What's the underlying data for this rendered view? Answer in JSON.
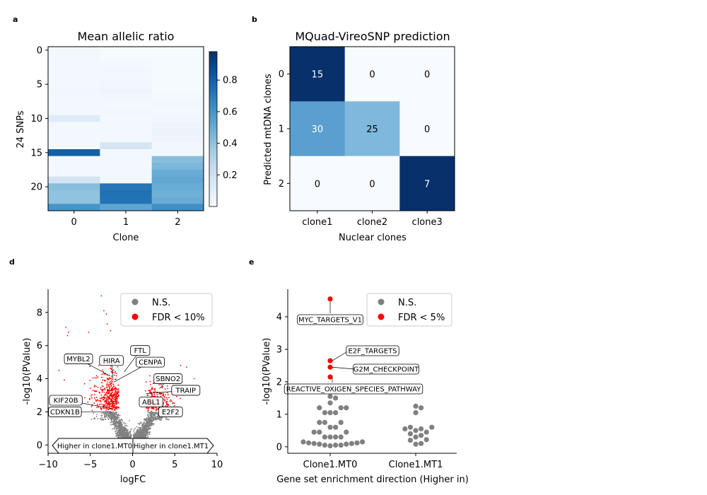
{
  "chart_data": [
    {
      "panel": "a",
      "type": "heatmap",
      "title": "Mean allelic ratio",
      "xlabel": "Clone",
      "ylabel": "24 SNPs",
      "x_categories": [
        "0",
        "1",
        "2"
      ],
      "yticks": [
        "0",
        "5",
        "10",
        "15",
        "20"
      ],
      "colorbar_ticks": [
        "0.2",
        "0.4",
        "0.6",
        "0.8"
      ],
      "colorbar_range": [
        0.0,
        0.98
      ],
      "colormap": [
        "#f7fbff",
        "#deebf7",
        "#c6dbef",
        "#9ecae1",
        "#6baed6",
        "#4292c6",
        "#2171b5",
        "#08519c",
        "#08306b"
      ],
      "values": [
        [
          0.03,
          0.01,
          0.01
        ],
        [
          0.02,
          0.01,
          0.01
        ],
        [
          0.02,
          0.02,
          0.01
        ],
        [
          0.02,
          0.03,
          0.01
        ],
        [
          0.02,
          0.02,
          0.01
        ],
        [
          0.02,
          0.03,
          0.01
        ],
        [
          0.03,
          0.05,
          0.01
        ],
        [
          0.02,
          0.03,
          0.02
        ],
        [
          0.02,
          0.02,
          0.03
        ],
        [
          0.02,
          0.03,
          0.02
        ],
        [
          0.12,
          0.02,
          0.03
        ],
        [
          0.02,
          0.02,
          0.05
        ],
        [
          0.02,
          0.02,
          0.06
        ],
        [
          0.02,
          0.02,
          0.05
        ],
        [
          0.02,
          0.17,
          0.03
        ],
        [
          0.8,
          0.02,
          0.03
        ],
        [
          0.02,
          0.02,
          0.42
        ],
        [
          0.02,
          0.02,
          0.45
        ],
        [
          0.02,
          0.02,
          0.5
        ],
        [
          0.18,
          0.03,
          0.52
        ],
        [
          0.42,
          0.72,
          0.5
        ],
        [
          0.4,
          0.74,
          0.48
        ],
        [
          0.4,
          0.73,
          0.5
        ],
        [
          0.6,
          0.53,
          0.62
        ]
      ]
    },
    {
      "panel": "b",
      "type": "heatmap",
      "title": "MQuad-VireoSNP prediction",
      "xlabel": "Nuclear clones",
      "ylabel": "Predicted mtDNA clones",
      "x_categories": [
        "clone1",
        "clone2",
        "clone3"
      ],
      "y_categories": [
        "0",
        "1",
        "2"
      ],
      "values": [
        [
          15,
          0,
          0
        ],
        [
          30,
          25,
          0
        ],
        [
          0,
          0,
          7
        ]
      ],
      "cell_colors": [
        [
          "#08306b",
          "#f7fbff",
          "#f7fbff"
        ],
        [
          "#5a9fd0",
          "#7fb8dd",
          "#f7fbff"
        ],
        [
          "#f7fbff",
          "#f7fbff",
          "#08306b"
        ]
      ]
    },
    {
      "panel": "d",
      "type": "scatter",
      "xlabel": "logFC",
      "ylabel": "-log10(PValue)",
      "xlim": [
        -10,
        10
      ],
      "ylim": [
        -0.5,
        9.4
      ],
      "xticks": [
        -10,
        -5,
        0,
        5,
        10
      ],
      "yticks": [
        0,
        2,
        4,
        6,
        8
      ],
      "legend": {
        "placement": "top-right",
        "entries": [
          {
            "label": "N.S.",
            "color": "#808080"
          },
          {
            "label": "FDR < 10%",
            "color": "#ff0000"
          }
        ]
      },
      "direction_labels": {
        "left": "Higher in clone1.MT0",
        "right": "Higher in clone1.MT1"
      },
      "gene_labels": [
        {
          "name": "FTL",
          "x": -1.0,
          "y": 4.4,
          "label_x": 0.9,
          "label_y": 5.7
        },
        {
          "name": "HIRA",
          "x": -2.3,
          "y": 3.9,
          "label_x": -2.5,
          "label_y": 5.1
        },
        {
          "name": "MYBL2",
          "x": -2.8,
          "y": 4.2,
          "label_x": -6.4,
          "label_y": 5.2
        },
        {
          "name": "CENPA",
          "x": -2.2,
          "y": 3.8,
          "label_x": 2.1,
          "label_y": 5.0
        },
        {
          "name": "SBNO2",
          "x": 3.2,
          "y": 3.4,
          "label_x": 4.2,
          "label_y": 4.0
        },
        {
          "name": "TRAIP",
          "x": 1.6,
          "y": 3.1,
          "label_x": 6.3,
          "label_y": 3.3
        },
        {
          "name": "ABL1",
          "x": 2.6,
          "y": 2.6,
          "label_x": 2.2,
          "label_y": 2.6
        },
        {
          "name": "KIF20B",
          "x": -2.4,
          "y": 2.2,
          "label_x": -7.9,
          "label_y": 2.7
        },
        {
          "name": "E2F2",
          "x": 3.0,
          "y": 2.2,
          "label_x": 4.5,
          "label_y": 2.0
        },
        {
          "name": "CDKN1B",
          "x": -2.5,
          "y": 2.0,
          "label_x": -8.0,
          "label_y": 2.0
        }
      ]
    },
    {
      "panel": "e",
      "type": "scatter",
      "xlabel": "Gene set enrichment direction (Higher in)",
      "ylabel": "-log10(PValue)",
      "categories": [
        "Clone1.MT0",
        "Clone1.MT1"
      ],
      "ylim": [
        -0.2,
        4.85
      ],
      "yticks": [
        0,
        1,
        2,
        3,
        4
      ],
      "legend": {
        "placement": "top-right",
        "entries": [
          {
            "label": "N.S.",
            "color": "#808080"
          },
          {
            "label": "FDR < 5%",
            "color": "#ff0000"
          }
        ]
      },
      "significant_points": [
        {
          "category": "Clone1.MT0",
          "y": 4.55,
          "label": "MYC_TARGETS_V1"
        },
        {
          "category": "Clone1.MT0",
          "y": 2.65,
          "label": "E2F_TARGETS"
        },
        {
          "category": "Clone1.MT0",
          "y": 2.45,
          "label": "G2M_CHECKPOINT"
        },
        {
          "category": "Clone1.MT0",
          "y": 2.15,
          "label": "REACTIVE_OXIGEN_SPECIES_PATHWAY"
        }
      ],
      "ns_points": {
        "Clone1.MT0": [
          1.7,
          1.55,
          1.5,
          1.35,
          1.2,
          1.2,
          1.2,
          1.05,
          1.05,
          1.05,
          0.75,
          0.75,
          0.75,
          0.6,
          0.6,
          0.45,
          0.45,
          0.45,
          0.3,
          0.3,
          0.3,
          0.3,
          0.15,
          0.15,
          0.12,
          0.12,
          0.1,
          0.1,
          0.08,
          0.08,
          0.05,
          0.05,
          0.05,
          0.03
        ],
        "Clone1.MT1": [
          1.25,
          1.2,
          1.05,
          0.6,
          0.6,
          0.55,
          0.55,
          0.5,
          0.45,
          0.4,
          0.35,
          0.3,
          0.22,
          0.2,
          0.1,
          0.08
        ]
      }
    }
  ]
}
